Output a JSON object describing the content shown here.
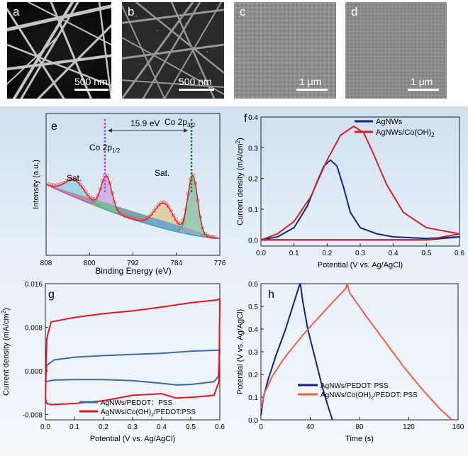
{
  "colors": {
    "navy": "#13208a",
    "red": "#d0222a",
    "steel": "#3b6aa8",
    "bright_red": "#e8141c",
    "salmon": "#f25a4a",
    "green": "#1e8a3a",
    "purple": "#b34fd6"
  },
  "sem": [
    {
      "label": "a",
      "scalebar": "500 nm",
      "style": "dark-nanowires"
    },
    {
      "label": "b",
      "scalebar": "500 nm",
      "style": "coated-nanowires"
    },
    {
      "label": "c",
      "scalebar": "1 μm",
      "style": "granular"
    },
    {
      "label": "d",
      "scalebar": "1 μm",
      "style": "granular-fine"
    }
  ],
  "chart_data": [
    {
      "panel": "e",
      "type": "line",
      "xlabel": "Binding Energy (eV)",
      "ylabel": "Intensity (a.u.)",
      "xlim": [
        808,
        776
      ],
      "x_ticks": [
        "808",
        "800",
        "792",
        "784",
        "776"
      ],
      "annotations": {
        "split": "15.9 eV",
        "peak_high": "Co 2p",
        "peak_high_sub": "3/2",
        "peak_low": "Co 2p",
        "peak_low_sub": "1/2",
        "sat1": "Sat.",
        "sat2": "Sat."
      },
      "peaks_eV": {
        "Co2p1/2": 796.9,
        "Co2p3/2": 781.0,
        "sat_1": 802.7,
        "sat_2": 786.3
      }
    },
    {
      "panel": "f",
      "type": "line",
      "xlabel": "Potential (V vs. Ag/AgCl)",
      "ylabel": "Current density (mA/cm",
      "ylabel_sup": "2",
      "ylabel_end": ")",
      "xlim": [
        0.0,
        0.6
      ],
      "ylim": [
        -0.02,
        0.4
      ],
      "x_ticks": [
        "0.0",
        "0.1",
        "0.2",
        "0.3",
        "0.4",
        "0.5",
        "0.6"
      ],
      "y_ticks": [
        "0.0",
        "0.1",
        "0.2",
        "0.3",
        "0.4"
      ],
      "series": [
        {
          "name": "AgNWs",
          "color": "#13208a",
          "x": [
            0.0,
            0.05,
            0.1,
            0.14,
            0.17,
            0.19,
            0.21,
            0.23,
            0.25,
            0.27,
            0.3,
            0.35,
            0.4,
            0.5,
            0.6,
            0.5,
            0.4,
            0.3,
            0.2,
            0.1,
            0.0
          ],
          "y": [
            0.0,
            0.01,
            0.04,
            0.11,
            0.19,
            0.24,
            0.26,
            0.24,
            0.17,
            0.09,
            0.04,
            0.02,
            0.01,
            0.005,
            0.01,
            0.0,
            0.0,
            0.0,
            0.0,
            0.0,
            0.0
          ]
        },
        {
          "name": "AgNWs/Co(OH)",
          "name_sub": "2",
          "color": "#d0222a",
          "x": [
            0.0,
            0.05,
            0.1,
            0.15,
            0.2,
            0.24,
            0.28,
            0.31,
            0.34,
            0.38,
            0.43,
            0.5,
            0.6,
            0.5,
            0.4,
            0.3,
            0.2,
            0.1,
            0.0
          ],
          "y": [
            0.0,
            0.02,
            0.06,
            0.14,
            0.26,
            0.34,
            0.37,
            0.35,
            0.28,
            0.18,
            0.09,
            0.04,
            0.02,
            0.0,
            0.0,
            0.0,
            0.0,
            0.0,
            0.0
          ]
        }
      ]
    },
    {
      "panel": "g",
      "type": "line",
      "xlabel": "Potential (V vs. Ag/AgCl)",
      "ylabel": "Current density (mA/cm",
      "ylabel_sup": "2",
      "ylabel_end": ")",
      "xlim": [
        0.0,
        0.6
      ],
      "ylim": [
        -0.009,
        0.016
      ],
      "x_ticks": [
        "0.0",
        "0.1",
        "0.2",
        "0.3",
        "0.4",
        "0.5",
        "0.6"
      ],
      "y_ticks": [
        "-0.008",
        "0.000",
        "0.008",
        "0.016"
      ],
      "series": [
        {
          "name": "AgNWs/PEDOT：PSS",
          "color": "#3b6aa8",
          "x": [
            0.0,
            0.005,
            0.03,
            0.1,
            0.2,
            0.3,
            0.4,
            0.5,
            0.59,
            0.6,
            0.595,
            0.58,
            0.5,
            0.45,
            0.4,
            0.3,
            0.2,
            0.1,
            0.03,
            0.0
          ],
          "y": [
            -0.002,
            0.001,
            0.002,
            0.0025,
            0.0028,
            0.003,
            0.0032,
            0.0036,
            0.0038,
            0.0038,
            -0.001,
            -0.002,
            -0.0025,
            -0.0026,
            -0.0023,
            -0.0018,
            -0.0016,
            -0.0016,
            -0.0017,
            -0.002
          ]
        },
        {
          "name": "AgNWs/Co(OH)",
          "name_sub": "2",
          "name_end": "/PEDOT:PSS",
          "color": "#e8141c",
          "x": [
            0.0,
            0.005,
            0.02,
            0.1,
            0.2,
            0.3,
            0.4,
            0.5,
            0.59,
            0.6,
            0.597,
            0.58,
            0.52,
            0.45,
            0.4,
            0.3,
            0.2,
            0.1,
            0.02,
            0.005,
            0.0
          ],
          "y": [
            -0.005,
            0.006,
            0.009,
            0.0098,
            0.0105,
            0.011,
            0.0117,
            0.0125,
            0.013,
            0.0132,
            -0.002,
            -0.0045,
            -0.0048,
            -0.005,
            -0.0042,
            -0.0045,
            -0.0055,
            -0.006,
            -0.0062,
            -0.006,
            -0.005
          ]
        }
      ]
    },
    {
      "panel": "h",
      "type": "line",
      "xlabel": "Time (s)",
      "ylabel": "Potential (V vs. Ag/AgCl)",
      "xlim": [
        0,
        160
      ],
      "ylim": [
        0,
        0.6
      ],
      "x_ticks": [
        "0",
        "40",
        "80",
        "120",
        "160"
      ],
      "y_ticks": [
        "0.0",
        "0.1",
        "0.2",
        "0.3",
        "0.4",
        "0.5",
        "0.6"
      ],
      "series": [
        {
          "name": "AgNWs/PEDOT: PSS",
          "color": "#13208a",
          "x": [
            0,
            2,
            6,
            12,
            20,
            27,
            31,
            32,
            34,
            38,
            44,
            50,
            55,
            58
          ],
          "y": [
            0.02,
            0.1,
            0.18,
            0.28,
            0.4,
            0.52,
            0.59,
            0.6,
            0.52,
            0.4,
            0.27,
            0.14,
            0.05,
            0.0
          ]
        },
        {
          "name": "AgNWs/Co(OH)",
          "name_sub": "2",
          "name_end": "/PEDOT: PSS",
          "color": "#f25a4a",
          "x": [
            0,
            3,
            10,
            20,
            35,
            50,
            62,
            69,
            70,
            72,
            85,
            100,
            115,
            130,
            145,
            155
          ],
          "y": [
            0.05,
            0.12,
            0.2,
            0.28,
            0.38,
            0.47,
            0.54,
            0.58,
            0.6,
            0.56,
            0.46,
            0.35,
            0.24,
            0.14,
            0.05,
            0.0
          ]
        }
      ]
    }
  ]
}
